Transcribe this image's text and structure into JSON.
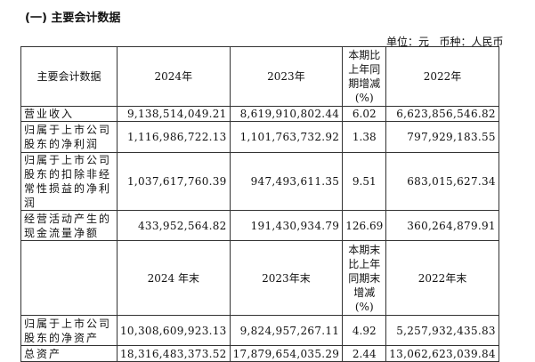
{
  "section_title": "(一) 主要会计数据",
  "unit_label": "单位：元   币种：人民币",
  "header1": {
    "item": "主要会计数据",
    "y2024": "2024年",
    "y2023": "2023年",
    "change": "本期比上年同期增减(%)",
    "y2022": "2022年"
  },
  "rows1": [
    {
      "item": "营业收入",
      "y2024": "9,138,514,049.21",
      "y2023": "8,619,910,802.44",
      "change": "6.02",
      "y2022": "6,623,856,546.82"
    },
    {
      "item": "归属于上市公司股东的净利润",
      "y2024": "1,116,986,722.13",
      "y2023": "1,101,763,732.92",
      "change": "1.38",
      "y2022": "797,929,183.55"
    },
    {
      "item": "归属于上市公司股东的扣除非经常性损益的净利润",
      "y2024": "1,037,617,760.39",
      "y2023": "947,493,611.35",
      "change": "9.51",
      "y2022": "683,015,627.34"
    },
    {
      "item": "经营活动产生的现金流量净额",
      "y2024": "433,952,564.82",
      "y2023": "191,430,934.79",
      "change": "126.69",
      "y2022": "360,264,879.91"
    }
  ],
  "header2": {
    "item": "",
    "y2024": "2024 年末",
    "y2023": "2023年末",
    "change": "本期末比上年同期末增减(%)",
    "y2022": "2022年末"
  },
  "rows2": [
    {
      "item": "归属于上市公司股东的净资产",
      "y2024": "10,308,609,923.13",
      "y2023": "9,824,957,267.11",
      "change": "4.92",
      "y2022": "5,257,932,435.83"
    },
    {
      "item": "总资产",
      "y2024": "18,316,483,373.52",
      "y2023": "17,879,654,035.29",
      "change": "2.44",
      "y2022": "13,062,623,039.84"
    }
  ]
}
